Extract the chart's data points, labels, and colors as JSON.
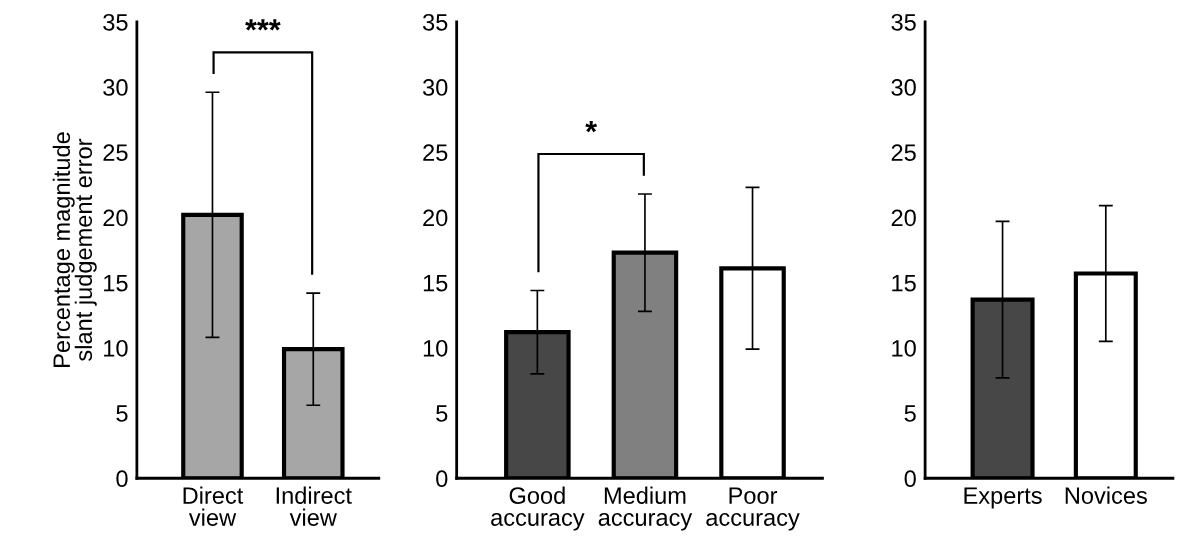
{
  "chart_data": [
    {
      "type": "bar",
      "ylabel": "Percentage magnitude\nslant judgement error",
      "categories": [
        "Direct\nview",
        "Indirect\nview"
      ],
      "values": [
        20.2,
        9.9
      ],
      "colors": [
        "#a6a6a6",
        "#a6a6a6"
      ],
      "errors": [
        9.4,
        4.3
      ],
      "ylim": [
        0,
        35
      ],
      "yticks": [
        0,
        5,
        10,
        15,
        20,
        25,
        30,
        35
      ],
      "grid": false,
      "annotations": [
        "***"
      ]
    },
    {
      "type": "bar",
      "categories": [
        "Good\naccuracy",
        "Medium\naccuracy",
        "Poor\naccuracy"
      ],
      "values": [
        11.2,
        17.3,
        16.1
      ],
      "colors": [
        "#474747",
        "#808080",
        "#ffffff"
      ],
      "errors": [
        3.2,
        4.5,
        6.2
      ],
      "ylim": [
        0,
        35
      ],
      "yticks": [
        0,
        5,
        10,
        15,
        20,
        25,
        30,
        35
      ],
      "grid": false,
      "annotations": [
        "*"
      ]
    },
    {
      "type": "bar",
      "categories": [
        "Experts",
        "Novices"
      ],
      "values": [
        13.7,
        15.7
      ],
      "colors": [
        "#474747",
        "#ffffff"
      ],
      "errors": [
        6.0,
        5.2
      ],
      "ylim": [
        0,
        35
      ],
      "yticks": [
        0,
        5,
        10,
        15,
        20,
        25,
        30,
        35
      ],
      "grid": false
    }
  ]
}
